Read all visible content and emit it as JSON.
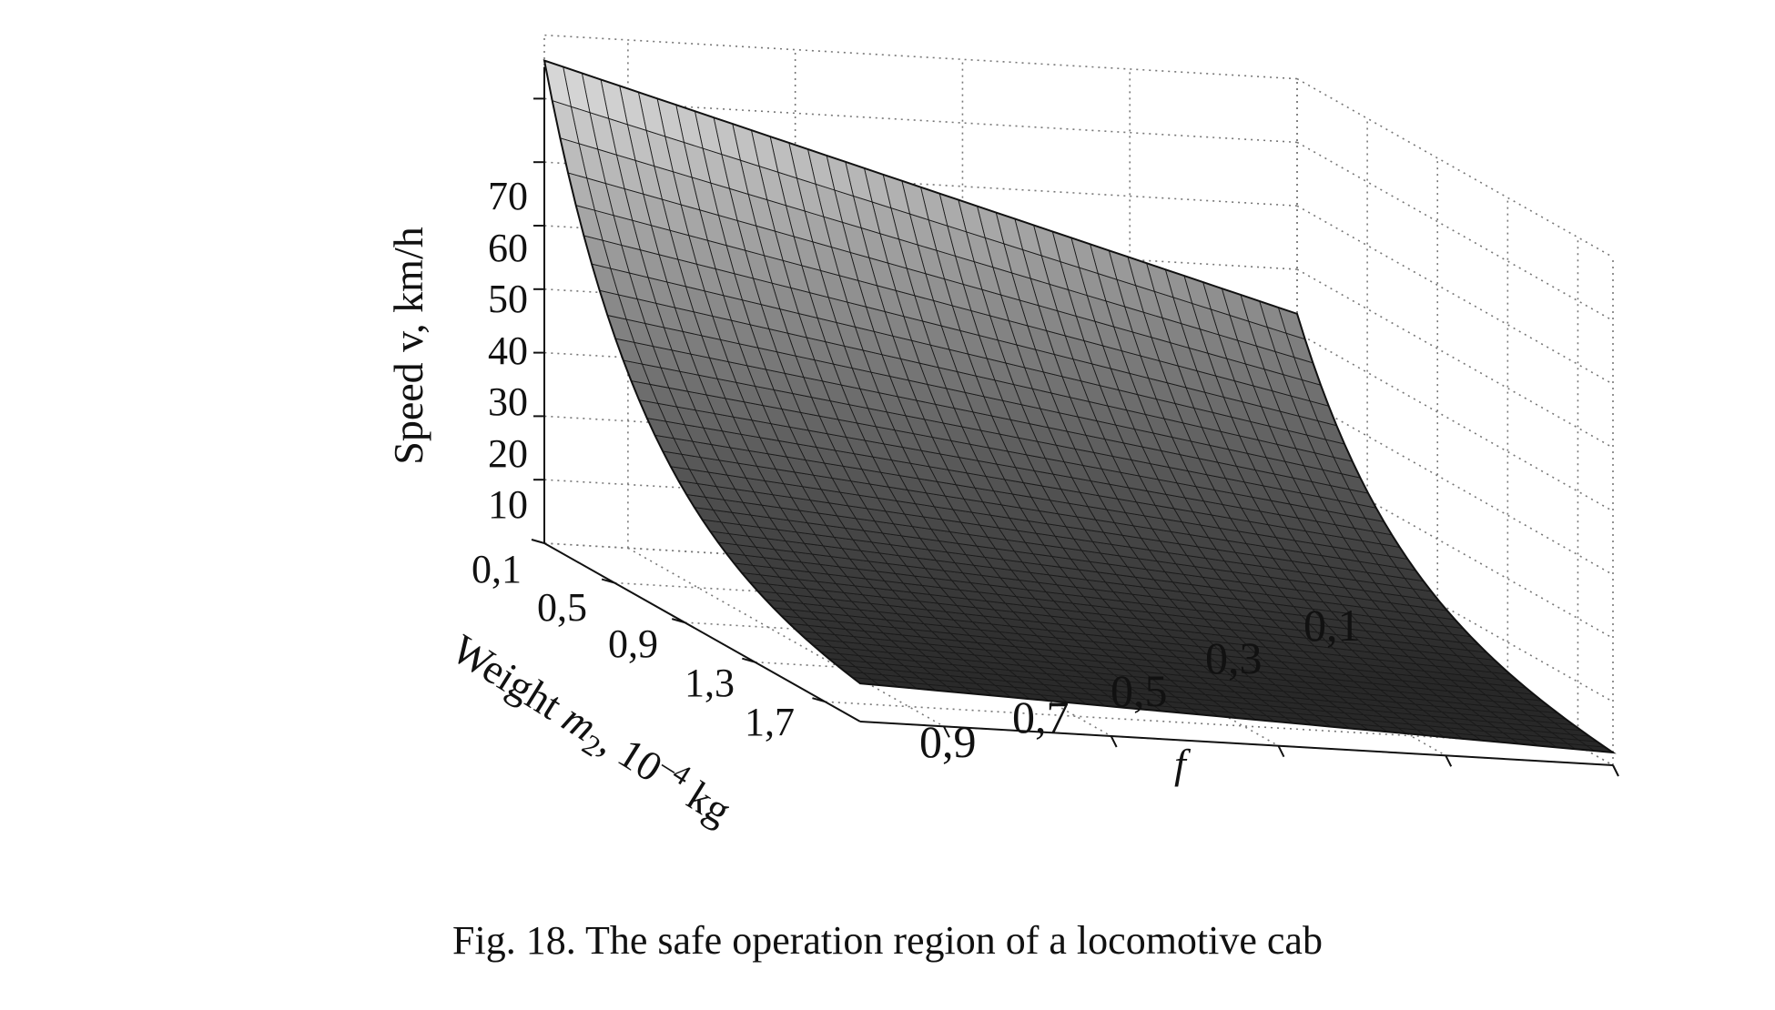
{
  "caption": "Fig. 18. The safe operation region of a locomotive cab",
  "chart_data": {
    "type": "surface3d",
    "title": "",
    "zlabel": "Speed v, km/h",
    "xlabel_parts": [
      "Weight ",
      "m",
      "2",
      ", 10",
      "–4",
      " kg"
    ],
    "ylabel": "f",
    "x_ticks": [
      "0,1",
      "0,5",
      "0,9",
      "1,3",
      "1,7"
    ],
    "y_ticks": [
      "0,1",
      "0,3",
      "0,5",
      "0,7",
      "0,9"
    ],
    "z_ticks": [
      "10",
      "20",
      "30",
      "40",
      "50",
      "60",
      "70"
    ],
    "x_range": [
      0.1,
      1.9
    ],
    "y_range": [
      0.1,
      1.0
    ],
    "z_range": [
      0,
      80
    ],
    "grid": true,
    "surface_corners": [
      {
        "m2": 0.1,
        "f": 1.0,
        "v": 76
      },
      {
        "m2": 0.1,
        "f": 0.1,
        "v": 43
      },
      {
        "m2": 1.9,
        "f": 1.0,
        "v": 6
      },
      {
        "m2": 1.9,
        "f": 0.1,
        "v": 2
      }
    ],
    "surface_color": "#3a3a3a",
    "surface_top_color": "#d8d8d8"
  }
}
